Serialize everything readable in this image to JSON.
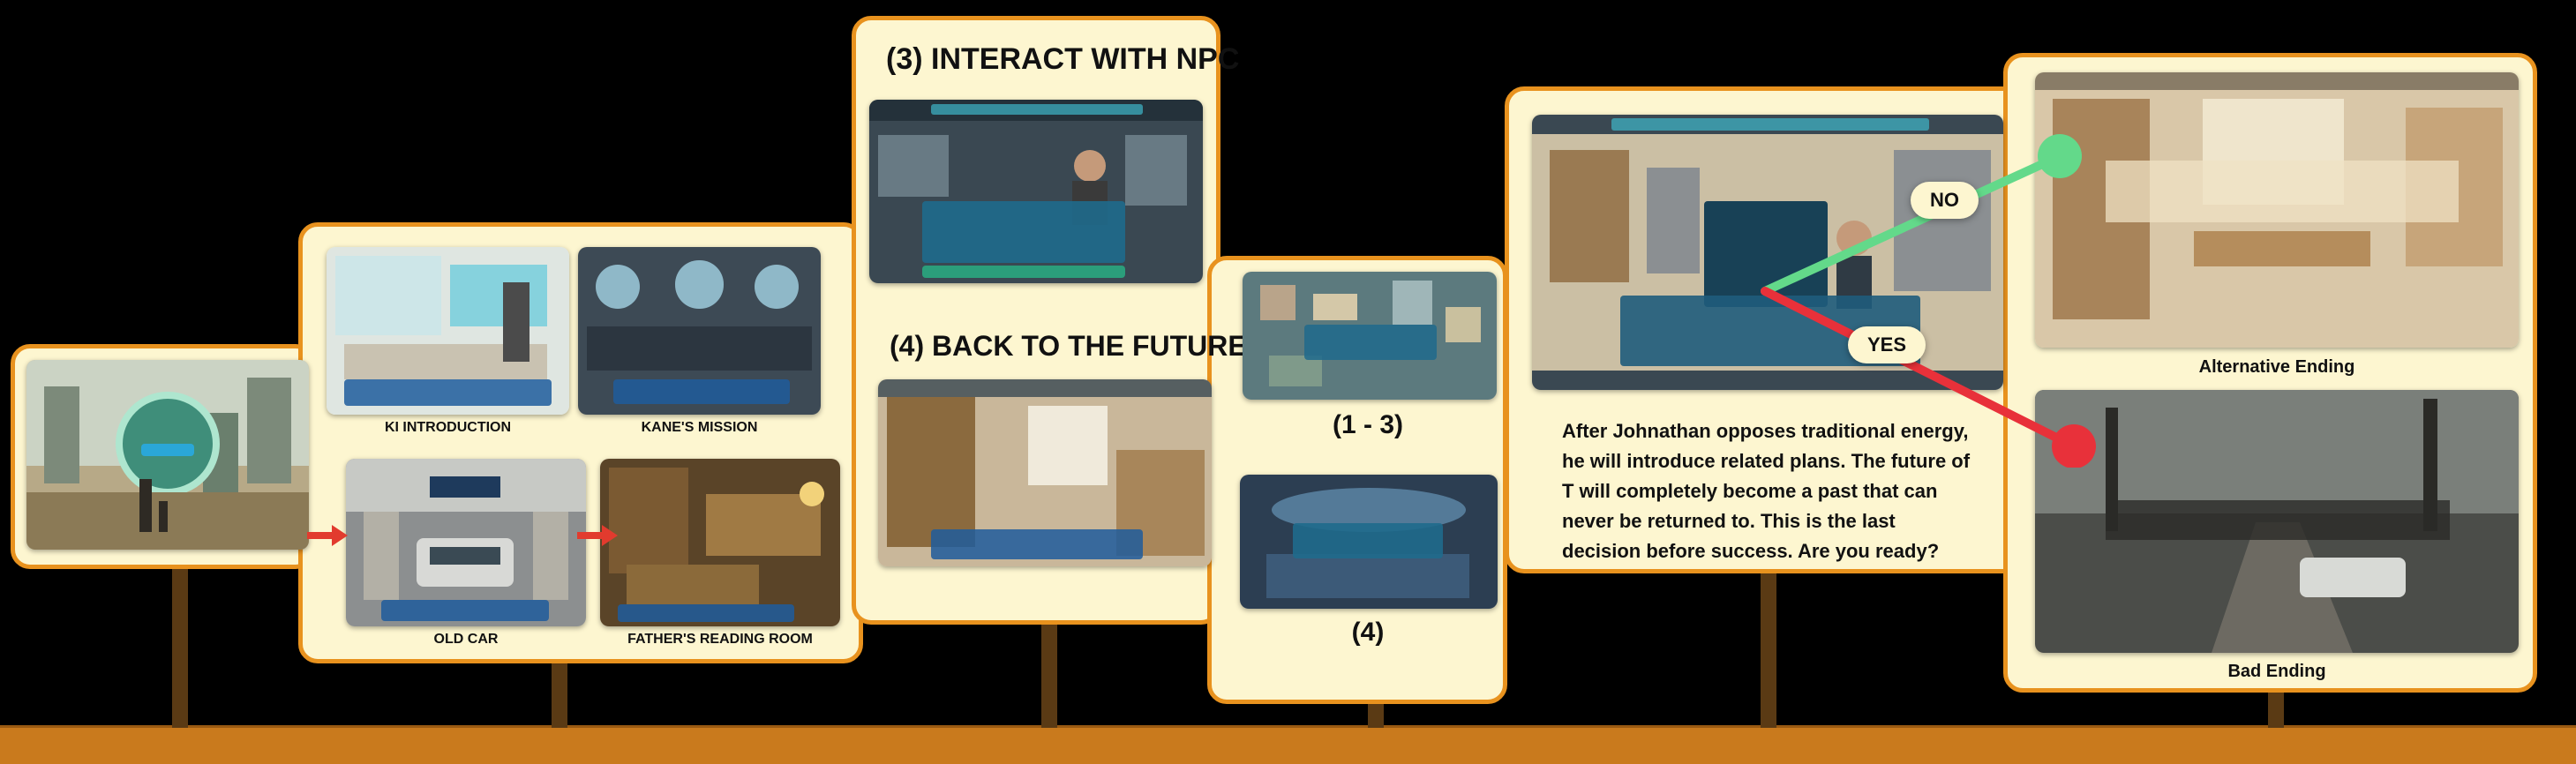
{
  "headers": {
    "interact": "(3) INTERACT WITH NPC",
    "back": "(4) BACK TO THE FUTURE"
  },
  "captions": {
    "ki": "KI INTRODUCTION",
    "kane": "KANE'S MISSION",
    "old_car": "OLD CAR",
    "reading_room": "FATHER'S READING ROOM",
    "range_1_3": "(1 - 3)",
    "range_4": "(4)",
    "alt_ending": "Alternative Ending",
    "bad_ending": "Bad Ending"
  },
  "choices": {
    "no": "NO",
    "yes": "YES"
  },
  "story_text": "After Johnathan opposes traditional energy, he will introduce related plans. The future of T will completely become a past that can never be returned to. This is the last decision before success. Are you ready?",
  "colors": {
    "panel_fill": "#fdf6d0",
    "panel_border": "#e8921e",
    "ground": "#c97a1d",
    "arrow_red": "#e23b2e",
    "yes_line": "#e8313a",
    "no_line": "#63d98a"
  }
}
